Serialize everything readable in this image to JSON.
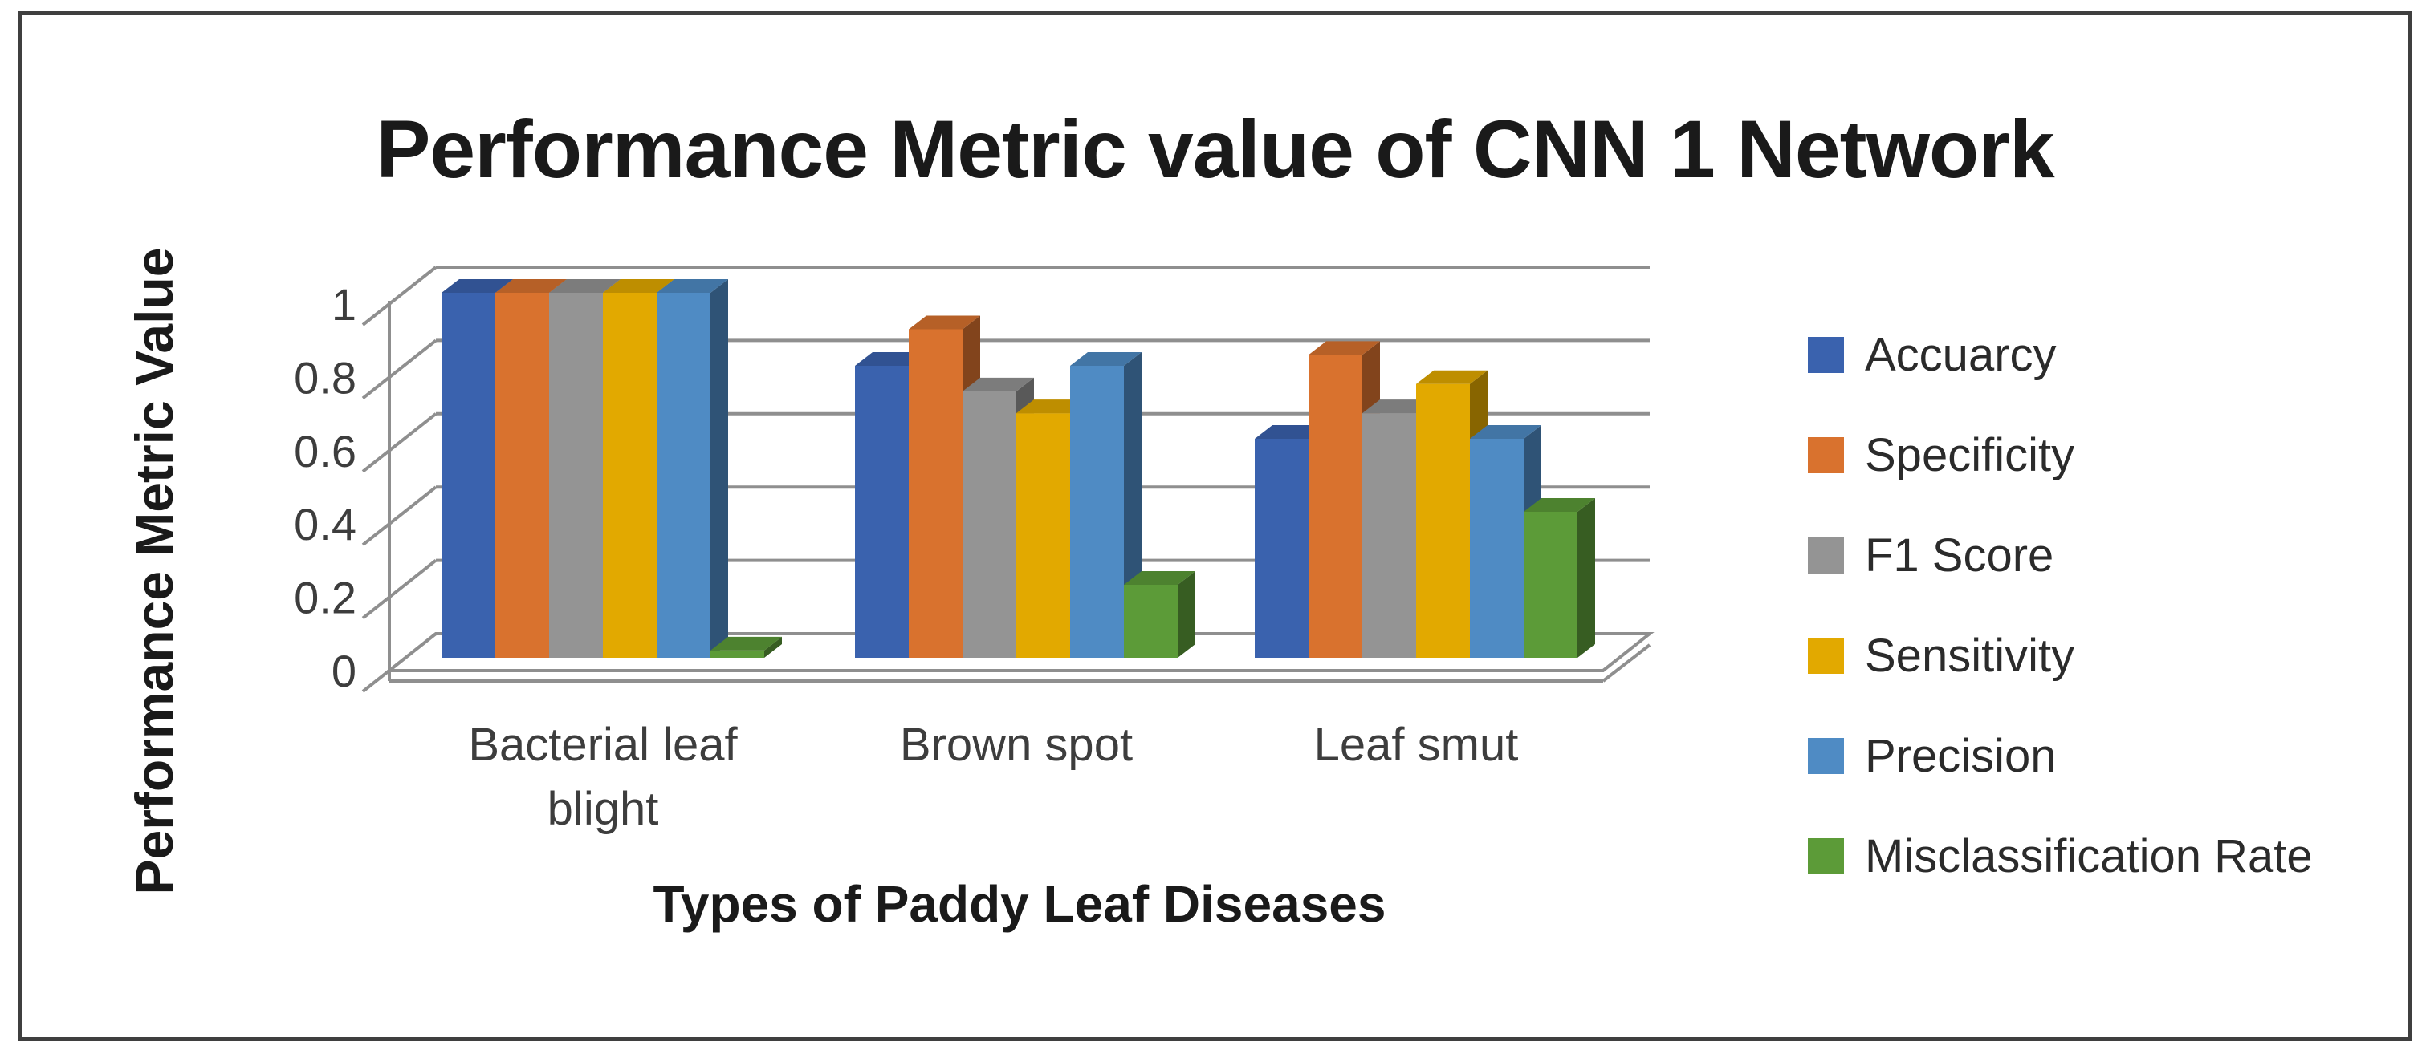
{
  "chart_data": {
    "type": "bar",
    "variant": "3d-clustered-column",
    "title": "Performance Metric value of CNN 1 Network",
    "xlabel": "Types of Paddy Leaf Diseases",
    "ylabel": "Performance Metric Value",
    "categories": [
      "Bacterial leaf blight",
      "Brown spot",
      "Leaf smut"
    ],
    "category_display_lines": [
      [
        "Bacterial leaf",
        "blight"
      ],
      [
        "Brown spot"
      ],
      [
        "Leaf smut"
      ]
    ],
    "series": [
      {
        "name": "Accuarcy",
        "color": "#3a62ae",
        "values": [
          1.0,
          0.8,
          0.6
        ]
      },
      {
        "name": "Specificity",
        "color": "#d9722e",
        "values": [
          1.0,
          0.9,
          0.83
        ]
      },
      {
        "name": "F1 Score",
        "color": "#949494",
        "values": [
          1.0,
          0.73,
          0.67
        ]
      },
      {
        "name": "Sensitivity",
        "color": "#e2a900",
        "values": [
          1.0,
          0.67,
          0.75
        ]
      },
      {
        "name": "Precision",
        "color": "#4f8bc4",
        "values": [
          1.0,
          0.8,
          0.6
        ]
      },
      {
        "name": "Misclassification Rate",
        "color": "#5c9b38",
        "values": [
          0.02,
          0.2,
          0.4
        ]
      }
    ],
    "y_ticks": [
      0,
      0.2,
      0.4,
      0.6,
      0.8,
      1
    ],
    "y_tick_labels": [
      "0",
      "0.2",
      "0.4",
      "0.6",
      "0.8",
      "1"
    ],
    "ylim": [
      0,
      1
    ],
    "grid": true,
    "legend_position": "right",
    "gridline_color": "#8f8f8f",
    "axis_line_color": "#8f8f8f",
    "text_color": "#3d3d3d",
    "frame_border_color": "#3f3f3f"
  }
}
